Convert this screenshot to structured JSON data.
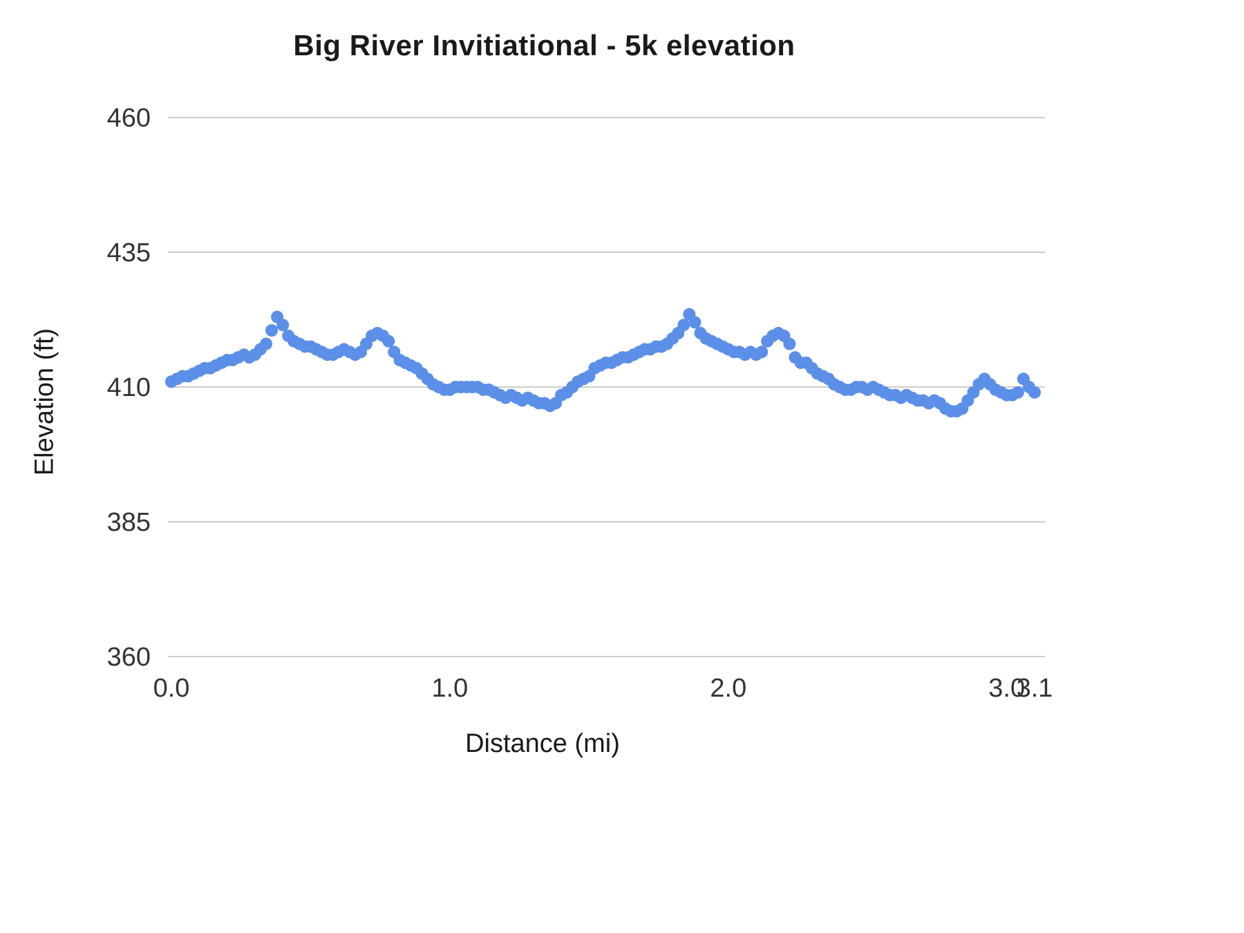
{
  "chart_data": {
    "type": "scatter",
    "title": "Big River Invitiational - 5k elevation",
    "xlabel": "Distance (mi)",
    "ylabel": "Elevation (ft)",
    "xlim": [
      0,
      3.1
    ],
    "ylim": [
      360,
      460
    ],
    "grid": "horizontal",
    "legend": "none",
    "point_color": "#5b8fe8",
    "grid_color": "#cccccc",
    "tick_label_color": "#333333",
    "y_ticks": [
      {
        "label": "460",
        "value": 460
      },
      {
        "label": "435",
        "value": 435
      },
      {
        "label": "410",
        "value": 410
      },
      {
        "label": "385",
        "value": 385
      },
      {
        "label": "360",
        "value": 360
      }
    ],
    "x_ticks": [
      {
        "label": "0.0",
        "value": 0
      },
      {
        "label": "1.0",
        "value": 1
      },
      {
        "label": "2.0",
        "value": 2
      },
      {
        "label": "3.0",
        "value": 3
      },
      {
        "label": "3.1",
        "value": 3.1
      }
    ],
    "series": [
      {
        "name": "elevation-profile",
        "x_start": 0,
        "x_step": 0.02,
        "x_unit": "mi",
        "y_unit": "ft",
        "elevations": [
          411,
          411.5,
          412,
          412,
          412.5,
          413,
          413.5,
          413.5,
          414,
          414.5,
          415,
          415,
          415.5,
          416,
          415.5,
          416,
          417,
          418,
          420.5,
          423,
          421.5,
          419.5,
          418.5,
          418,
          417.5,
          417.5,
          417,
          416.5,
          416,
          416,
          416.5,
          417,
          416.5,
          416,
          416.5,
          418,
          419.5,
          420,
          419.5,
          418.5,
          416.5,
          415,
          414.5,
          414,
          413.5,
          412.5,
          411.5,
          410.5,
          410,
          409.5,
          409.5,
          410,
          410,
          410,
          410,
          410,
          409.5,
          409.5,
          409,
          408.5,
          408,
          408.5,
          408,
          407.5,
          408,
          407.5,
          407,
          407,
          406.5,
          407,
          408.5,
          409,
          410,
          411,
          411.5,
          412,
          413.5,
          414,
          414.5,
          414.5,
          415,
          415.5,
          415.5,
          416,
          416.5,
          417,
          417,
          417.5,
          417.5,
          418,
          419,
          420,
          421.5,
          423.5,
          422,
          420,
          419,
          418.5,
          418,
          417.5,
          417,
          416.5,
          416.5,
          416,
          416.5,
          416,
          416.5,
          418.5,
          419.5,
          420,
          419.5,
          418,
          415.5,
          414.5,
          414.5,
          413.5,
          412.5,
          412,
          411.5,
          410.5,
          410,
          409.5,
          409.5,
          410,
          410,
          409.5,
          410,
          409.5,
          409,
          408.5,
          408.5,
          408,
          408.5,
          408,
          407.5,
          407.5,
          407,
          407.5,
          407,
          406,
          405.5,
          405.5,
          406,
          407.5,
          409,
          410.5,
          411.5,
          410.5,
          409.5,
          409,
          408.5,
          408.5,
          409,
          411.5,
          410,
          409
        ]
      }
    ]
  }
}
